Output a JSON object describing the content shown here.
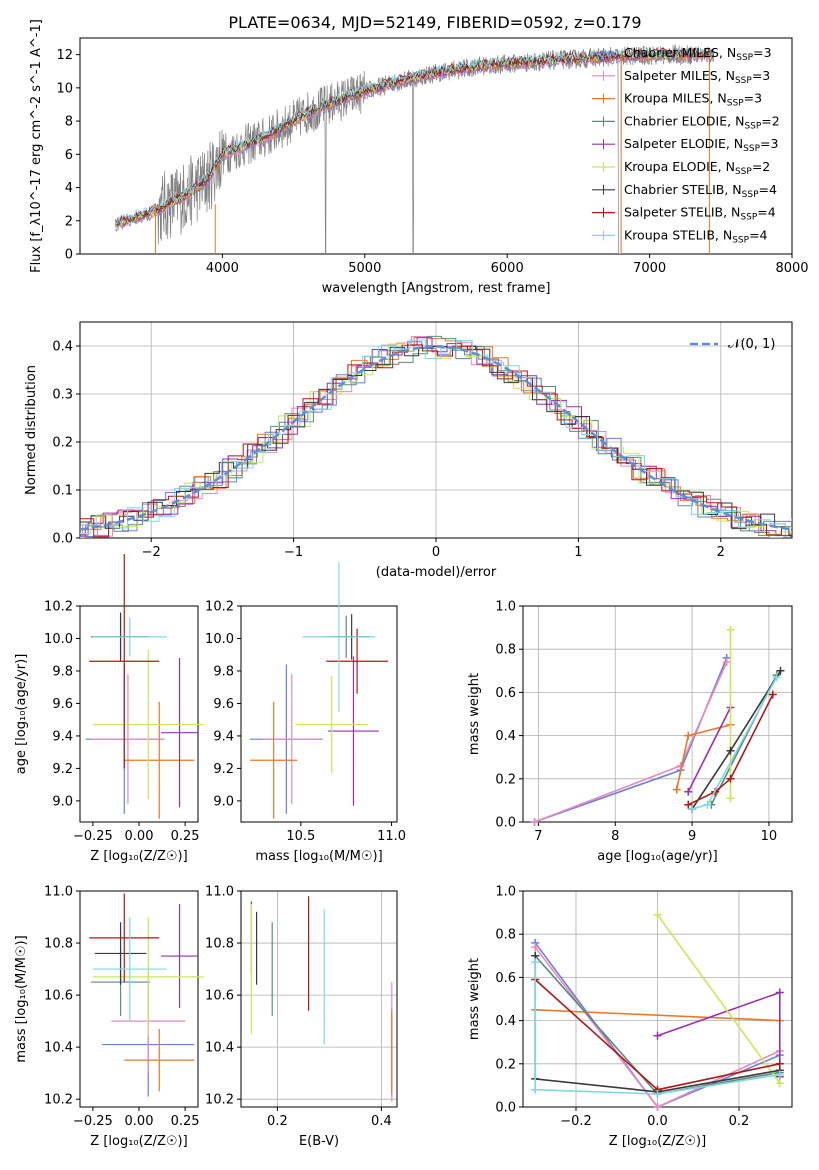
{
  "figure_title": "PLATE=0634, MJD=52149, FIBERID=0592, z=0.179",
  "colors": {
    "chabrier_miles": "#6a7fd6",
    "salpeter_miles": "#e68ac0",
    "kroupa_miles": "#e67a2a",
    "chabrier_elodie": "#5e8a7a",
    "salpeter_elodie": "#9a2fb0",
    "kroupa_elodie": "#c8e85a",
    "chabrier_stelib": "#3a3a3a",
    "salpeter_stelib": "#b01818",
    "kroupa_stelib": "#7fd8e0",
    "data_grey": "#808080",
    "normal_curve": "#5b8fd9"
  },
  "chart_data": [
    {
      "id": "spectrum",
      "type": "line",
      "xlabel": "wavelength [Angstrom, rest frame]",
      "ylabel": "Flux [f_λ10^-17 erg cm^-2 s^-1 A^-1]",
      "xlim": [
        3000,
        8000
      ],
      "ylim": [
        0,
        13
      ],
      "xticks": [
        4000,
        5000,
        6000,
        7000,
        8000
      ],
      "yticks": [
        0,
        2,
        4,
        6,
        8,
        10,
        12
      ],
      "legend_placement": "upper right",
      "legend": [
        {
          "label": "Chabrier MILES, N",
          "sub": "SSP",
          "tail": "=3",
          "color_key": "chabrier_miles"
        },
        {
          "label": "Salpeter MILES, N",
          "sub": "SSP",
          "tail": "=3",
          "color_key": "salpeter_miles"
        },
        {
          "label": "Kroupa MILES, N",
          "sub": "SSP",
          "tail": "=3",
          "color_key": "kroupa_miles"
        },
        {
          "label": "Chabrier ELODIE, N",
          "sub": "SSP",
          "tail": "=2",
          "color_key": "chabrier_elodie"
        },
        {
          "label": "Salpeter ELODIE, N",
          "sub": "SSP",
          "tail": "=3",
          "color_key": "salpeter_elodie"
        },
        {
          "label": "Kroupa ELODIE, N",
          "sub": "SSP",
          "tail": "=2",
          "color_key": "kroupa_elodie"
        },
        {
          "label": "Chabrier STELIB, N",
          "sub": "SSP",
          "tail": "=4",
          "color_key": "chabrier_stelib"
        },
        {
          "label": "Salpeter STELIB, N",
          "sub": "SSP",
          "tail": "=4",
          "color_key": "salpeter_stelib"
        },
        {
          "label": "Kroupa STELIB, N",
          "sub": "SSP",
          "tail": "=4",
          "color_key": "kroupa_stelib"
        }
      ],
      "continuum": [
        [
          3250,
          1.8
        ],
        [
          3500,
          2.5
        ],
        [
          3700,
          3.3
        ],
        [
          3900,
          4.5
        ],
        [
          4000,
          6.0
        ],
        [
          4300,
          7.0
        ],
        [
          4600,
          8.5
        ],
        [
          4900,
          9.5
        ],
        [
          5200,
          10.3
        ],
        [
          5500,
          10.9
        ],
        [
          5800,
          11.3
        ],
        [
          6100,
          11.5
        ],
        [
          6400,
          11.7
        ],
        [
          6800,
          11.9
        ],
        [
          7200,
          12.0
        ],
        [
          7450,
          12.0
        ]
      ]
    },
    {
      "id": "residuals",
      "type": "histogram",
      "xlabel": "(data-model)/error",
      "ylabel": "Normed distribution",
      "xlim": [
        -2.5,
        2.5
      ],
      "ylim": [
        0,
        0.45
      ],
      "xticks": [
        -2,
        -1,
        0,
        1,
        2
      ],
      "yticks": [
        0.0,
        0.1,
        0.2,
        0.3,
        0.4
      ],
      "legend_label": "𝒩(0, 1)",
      "legend_placement": "upper right",
      "grid": true
    },
    {
      "id": "age_vs_Z",
      "type": "errorbar",
      "xlabel": "Z [log₁₀(Z/Z☉)]",
      "ylabel": "age  [log₁₀(age/yr)]",
      "xlim": [
        -0.32,
        0.32
      ],
      "ylim": [
        8.87,
        10.2
      ],
      "xticks": [
        -0.25,
        0.0,
        0.25
      ],
      "yticks": [
        9.0,
        9.2,
        9.4,
        9.6,
        9.8,
        10.0,
        10.2
      ],
      "points": [
        {
          "x": -0.08,
          "y": 9.38,
          "xerr": 0.21,
          "yerr": 0.46,
          "color_key": "chabrier_miles"
        },
        {
          "x": -0.06,
          "y": 9.38,
          "xerr": 0.2,
          "yerr": 0.4,
          "color_key": "salpeter_miles"
        },
        {
          "x": 0.11,
          "y": 9.25,
          "xerr": 0.19,
          "yerr": 0.36,
          "color_key": "kroupa_miles"
        },
        {
          "x": -0.1,
          "y": 10.01,
          "xerr": 0.16,
          "yerr": 0.13,
          "color_key": "chabrier_elodie"
        },
        {
          "x": 0.22,
          "y": 9.42,
          "xerr": 0.1,
          "yerr": 0.46,
          "color_key": "salpeter_elodie"
        },
        {
          "x": 0.05,
          "y": 9.47,
          "xerr": 0.3,
          "yerr": 0.46,
          "color_key": "kroupa_elodie"
        },
        {
          "x": -0.1,
          "y": 10.01,
          "xerr": 0.14,
          "yerr": 0.15,
          "color_key": "chabrier_stelib"
        },
        {
          "x": -0.08,
          "y": 9.86,
          "xerr": 0.19,
          "yerr": 0.66,
          "color_key": "salpeter_stelib"
        },
        {
          "x": -0.05,
          "y": 10.01,
          "xerr": 0.2,
          "yerr": 0.12,
          "color_key": "kroupa_stelib"
        }
      ]
    },
    {
      "id": "age_vs_mass",
      "type": "errorbar",
      "xlabel": "mass [log₁₀(M/M☉)]",
      "ylabel": "",
      "xlim": [
        10.17,
        11.03
      ],
      "ylim": [
        8.87,
        10.2
      ],
      "xticks": [
        10.5,
        11.0
      ],
      "yticks": [
        9.0,
        9.2,
        9.4,
        9.6,
        9.8,
        10.0,
        10.2
      ],
      "points": [
        {
          "x": 10.42,
          "y": 9.38,
          "xerr": 0.2,
          "yerr": 0.46,
          "color_key": "chabrier_miles"
        },
        {
          "x": 10.45,
          "y": 9.38,
          "xerr": 0.16,
          "yerr": 0.4,
          "color_key": "salpeter_miles"
        },
        {
          "x": 10.35,
          "y": 9.25,
          "xerr": 0.13,
          "yerr": 0.36,
          "color_key": "kroupa_miles"
        },
        {
          "x": 10.75,
          "y": 10.01,
          "xerr": 0.12,
          "yerr": 0.13,
          "color_key": "chabrier_elodie"
        },
        {
          "x": 10.79,
          "y": 9.43,
          "xerr": 0.14,
          "yerr": 0.46,
          "color_key": "salpeter_elodie"
        },
        {
          "x": 10.67,
          "y": 9.47,
          "xerr": 0.2,
          "yerr": 0.3,
          "color_key": "kroupa_elodie"
        },
        {
          "x": 10.78,
          "y": 10.01,
          "xerr": 0.1,
          "yerr": 0.14,
          "color_key": "chabrier_stelib"
        },
        {
          "x": 10.81,
          "y": 9.86,
          "xerr": 0.17,
          "yerr": 0.2,
          "color_key": "salpeter_stelib"
        },
        {
          "x": 10.71,
          "y": 10.01,
          "xerr": 0.2,
          "yerr": 0.46,
          "color_key": "kroupa_stelib"
        }
      ]
    },
    {
      "id": "weight_vs_age",
      "type": "line",
      "xlabel": "age  [log₁₀(age/yr)]",
      "ylabel": "mass weight",
      "xlim": [
        6.8,
        10.3
      ],
      "ylim": [
        0,
        1
      ],
      "xticks": [
        7,
        8,
        9,
        10
      ],
      "yticks": [
        0.0,
        0.2,
        0.4,
        0.6,
        0.8,
        1.0
      ],
      "grid": true,
      "series": [
        {
          "color_key": "chabrier_miles",
          "points": [
            [
              6.95,
              0.0
            ],
            [
              8.85,
              0.24
            ],
            [
              9.45,
              0.76
            ]
          ]
        },
        {
          "color_key": "salpeter_miles",
          "points": [
            [
              6.95,
              0.0
            ],
            [
              8.85,
              0.26
            ],
            [
              9.45,
              0.74
            ]
          ]
        },
        {
          "color_key": "kroupa_miles",
          "points": [
            [
              8.8,
              0.15
            ],
            [
              8.95,
              0.4
            ],
            [
              9.5,
              0.45
            ]
          ]
        },
        {
          "color_key": "chabrier_elodie",
          "points": [
            [
              9.25,
              0.08
            ],
            [
              10.1,
              0.68
            ]
          ]
        },
        {
          "color_key": "salpeter_elodie",
          "points": [
            [
              8.95,
              0.14
            ],
            [
              9.5,
              0.53
            ]
          ]
        },
        {
          "color_key": "kroupa_elodie",
          "points": [
            [
              9.5,
              0.11
            ],
            [
              9.5,
              0.89
            ]
          ]
        },
        {
          "color_key": "chabrier_stelib",
          "points": [
            [
              9.0,
              0.06
            ],
            [
              9.5,
              0.33
            ],
            [
              10.15,
              0.7
            ]
          ]
        },
        {
          "color_key": "salpeter_stelib",
          "points": [
            [
              8.95,
              0.08
            ],
            [
              9.3,
              0.14
            ],
            [
              9.5,
              0.2
            ],
            [
              10.05,
              0.59
            ]
          ]
        },
        {
          "color_key": "kroupa_stelib",
          "points": [
            [
              9.0,
              0.06
            ],
            [
              9.2,
              0.08
            ],
            [
              10.1,
              0.67
            ]
          ]
        }
      ]
    },
    {
      "id": "mass_vs_Z",
      "type": "errorbar",
      "xlabel": "Z [log₁₀(Z/Z☉)]",
      "ylabel": "mass [log₁₀(M/M☉)]",
      "xlim": [
        -0.32,
        0.32
      ],
      "ylim": [
        10.17,
        11.0
      ],
      "xticks": [
        -0.25,
        0.0,
        0.25
      ],
      "yticks": [
        10.2,
        10.4,
        10.6,
        10.8,
        11.0
      ],
      "points": [
        {
          "x": 0.05,
          "y": 10.41,
          "xerr": 0.25,
          "yerr": 0.2,
          "color_key": "chabrier_miles"
        },
        {
          "x": 0.05,
          "y": 10.5,
          "xerr": 0.2,
          "yerr": 0.2,
          "color_key": "salpeter_miles"
        },
        {
          "x": 0.11,
          "y": 10.35,
          "xerr": 0.19,
          "yerr": 0.12,
          "color_key": "kroupa_miles"
        },
        {
          "x": -0.1,
          "y": 10.65,
          "xerr": 0.16,
          "yerr": 0.13,
          "color_key": "chabrier_elodie"
        },
        {
          "x": 0.22,
          "y": 10.75,
          "xerr": 0.1,
          "yerr": 0.2,
          "color_key": "salpeter_elodie"
        },
        {
          "x": 0.05,
          "y": 10.67,
          "xerr": 0.3,
          "yerr": 0.23,
          "color_key": "kroupa_elodie"
        },
        {
          "x": -0.1,
          "y": 10.76,
          "xerr": 0.14,
          "yerr": 0.12,
          "color_key": "chabrier_stelib"
        },
        {
          "x": -0.08,
          "y": 10.82,
          "xerr": 0.19,
          "yerr": 0.17,
          "color_key": "salpeter_stelib"
        },
        {
          "x": -0.05,
          "y": 10.7,
          "xerr": 0.2,
          "yerr": 0.2,
          "color_key": "kroupa_stelib"
        }
      ]
    },
    {
      "id": "mass_vs_ebv",
      "type": "errorbar",
      "xlabel": "E(B-V)",
      "ylabel": "",
      "xlim": [
        0.13,
        0.43
      ],
      "ylim": [
        10.17,
        11.0
      ],
      "xticks": [
        0.2,
        0.4
      ],
      "yticks": [
        10.2,
        10.4,
        10.6,
        10.8,
        11.0
      ],
      "grid": true,
      "points": [
        {
          "x": 0.42,
          "y": 10.38,
          "xerr": 0,
          "yerr": 0.17,
          "color_key": "chabrier_miles"
        },
        {
          "x": 0.42,
          "y": 10.42,
          "xerr": 0,
          "yerr": 0.23,
          "color_key": "salpeter_miles"
        },
        {
          "x": 0.42,
          "y": 10.38,
          "xerr": 0,
          "yerr": 0.16,
          "color_key": "kroupa_miles"
        },
        {
          "x": 0.19,
          "y": 10.7,
          "xerr": 0,
          "yerr": 0.18,
          "color_key": "chabrier_elodie"
        },
        {
          "x": 0.15,
          "y": 10.82,
          "xerr": 0,
          "yerr": 0.14,
          "color_key": "salpeter_elodie"
        },
        {
          "x": 0.15,
          "y": 10.7,
          "xerr": 0,
          "yerr": 0.25,
          "color_key": "kroupa_elodie"
        },
        {
          "x": 0.16,
          "y": 10.78,
          "xerr": 0,
          "yerr": 0.14,
          "color_key": "chabrier_stelib"
        },
        {
          "x": 0.26,
          "y": 10.76,
          "xerr": 0,
          "yerr": 0.22,
          "color_key": "salpeter_stelib"
        },
        {
          "x": 0.29,
          "y": 10.67,
          "xerr": 0,
          "yerr": 0.26,
          "color_key": "kroupa_stelib"
        }
      ]
    },
    {
      "id": "weight_vs_Z",
      "type": "line",
      "xlabel": "Z [log₁₀(Z/Z☉)]",
      "ylabel": "mass weight",
      "xlim": [
        -0.33,
        0.33
      ],
      "ylim": [
        0,
        1
      ],
      "xticks": [
        -0.2,
        0.0,
        0.2
      ],
      "yticks": [
        0.0,
        0.2,
        0.4,
        0.6,
        0.8,
        1.0
      ],
      "grid": true,
      "series": [
        {
          "color_key": "chabrier_miles",
          "points": [
            [
              -0.3,
              0.76
            ],
            [
              0.0,
              0.0
            ],
            [
              0.3,
              0.24
            ]
          ]
        },
        {
          "color_key": "salpeter_miles",
          "points": [
            [
              -0.3,
              0.74
            ],
            [
              0.0,
              0.0
            ],
            [
              0.3,
              0.26
            ]
          ]
        },
        {
          "color_key": "kroupa_miles",
          "points": [
            [
              -0.3,
              0.45
            ],
            [
              0.3,
              0.4
            ]
          ]
        },
        {
          "color_key": "chabrier_elodie",
          "points": [
            [
              -0.3,
              0.7
            ],
            [
              0.0,
              0.06
            ],
            [
              0.3,
              0.16
            ]
          ]
        },
        {
          "color_key": "salpeter_elodie",
          "points": [
            [
              0.0,
              0.33
            ],
            [
              0.3,
              0.53
            ],
            [
              0.3,
              0.14
            ]
          ]
        },
        {
          "color_key": "kroupa_elodie",
          "points": [
            [
              0.0,
              0.89
            ],
            [
              0.3,
              0.11
            ]
          ]
        },
        {
          "color_key": "chabrier_stelib",
          "points": [
            [
              -0.3,
              0.7
            ],
            [
              -0.3,
              0.13
            ],
            [
              0.0,
              0.07
            ],
            [
              0.3,
              0.17
            ]
          ]
        },
        {
          "color_key": "salpeter_stelib",
          "points": [
            [
              -0.3,
              0.59
            ],
            [
              0.0,
              0.08
            ],
            [
              0.3,
              0.2
            ]
          ]
        },
        {
          "color_key": "kroupa_stelib",
          "points": [
            [
              -0.3,
              0.67
            ],
            [
              -0.3,
              0.08
            ],
            [
              0.0,
              0.06
            ],
            [
              0.3,
              0.15
            ]
          ]
        }
      ]
    }
  ]
}
